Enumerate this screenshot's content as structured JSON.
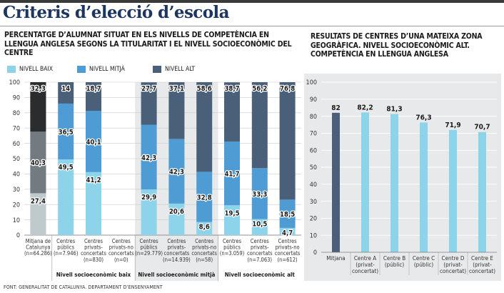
{
  "title": "Criteris d’elecció d’escola",
  "source": "FONT: GENERALITAT DE CATALUNYA. DEPARTAMENT D’ENSENYAMENT",
  "colors": {
    "baix": "#8dd4eb",
    "mitja": "#4e9cd3",
    "alt": "#4a6079",
    "overlay": "#7a7a7a",
    "title": "#1d3561",
    "panel_bg": "#e8e9ea"
  },
  "chart_data": [
    {
      "type": "bar",
      "stacked": true,
      "title": "PERCENTATGE D’ALUMNAT SITUAT EN ELS NIVELLS DE COMPETÈNCIA EN LLENGUA ANGLESA SEGONS LA TITULARITAT I EL NIVELL SOCIOECONÒMIC DEL CENTRE",
      "ylim": [
        0,
        100
      ],
      "yticks": [
        0,
        10,
        20,
        30,
        40,
        50,
        60,
        70,
        80,
        90,
        100
      ],
      "legend": [
        "NIVELL BAIX",
        "NIVELL MITJÀ",
        "NIVELL ALT"
      ],
      "legend_position": "top",
      "categories": [
        [
          "Mitjana de",
          "Catalunya",
          "(n=64.286)"
        ],
        [
          "Centres",
          "públics",
          "(n=7.946)"
        ],
        [
          "Centres",
          "privats-",
          "concertats",
          "(n=830)"
        ],
        [
          "Centres",
          "privats-no",
          "concertats",
          "(n=0)"
        ],
        [
          "Centres",
          "públics",
          "(n=29.779)"
        ],
        [
          "Centres",
          "privats-",
          "concertats",
          "(n=14.939)"
        ],
        [
          "Centres",
          "privats-no",
          "concertats",
          "(n=58)"
        ],
        [
          "Centres",
          "públics",
          "(n=3.059)"
        ],
        [
          "Centres",
          "privats-",
          "concertats",
          "(n=7.063)"
        ],
        [
          "Centres",
          "privats-no",
          "concertats",
          "(n=612)"
        ]
      ],
      "series": [
        {
          "name": "NIVELL BAIX",
          "values": [
            27.4,
            49.5,
            41.2,
            null,
            29.9,
            20.6,
            8.6,
            19.5,
            10.5,
            4.7
          ]
        },
        {
          "name": "NIVELL MITJÀ",
          "values": [
            40.3,
            36.5,
            40.1,
            null,
            42.3,
            42.3,
            32.8,
            41.7,
            33.3,
            18.5
          ]
        },
        {
          "name": "NIVELL ALT",
          "values": [
            32.3,
            14,
            18.7,
            null,
            27.7,
            37.1,
            58.6,
            38.7,
            56.2,
            76.8
          ]
        }
      ],
      "labels": [
        [
          "27,4",
          "40,3",
          "32,3"
        ],
        [
          "49,5",
          "36,5",
          "14"
        ],
        [
          "41,2",
          "40,1",
          "18,7"
        ],
        [
          "",
          "",
          ""
        ],
        [
          "29,9",
          "42,3",
          "27,7"
        ],
        [
          "20,6",
          "42,3",
          "37,1"
        ],
        [
          "8,6",
          "32,8",
          "58,6"
        ],
        [
          "19,5",
          "41,7",
          "38,7"
        ],
        [
          "10,5",
          "33,3",
          "56,2"
        ],
        [
          "4,7",
          "18,5",
          "76,8"
        ]
      ],
      "groups": [
        {
          "label": "Nivell socioeconòmic baix"
        },
        {
          "label": "Nivell socioeconòmic mitjà"
        },
        {
          "label": "Nivell socioeconòmic alt"
        }
      ]
    },
    {
      "type": "bar",
      "title": "RESULTATS DE CENTRES D’UNA MATEIXA ZONA GEOGRÀFICA. NIVELL SOCIOECONÒMIC ALT. COMPETÈNCIA EN LLENGUA ANGLESA",
      "ylim": [
        0,
        100
      ],
      "yticks": [
        0,
        10,
        20,
        30,
        40,
        50,
        60,
        70,
        80,
        90,
        100
      ],
      "categories": [
        [
          "Mitjana"
        ],
        [
          "Centre A",
          "(privat-",
          "concertat)"
        ],
        [
          "Centre B",
          "(públic)"
        ],
        [
          "Centre C",
          "(públic)"
        ],
        [
          "Centre D",
          "(privat-",
          "concertat)"
        ],
        [
          "Centre E",
          "(privat-",
          "concertat)"
        ]
      ],
      "values": [
        82,
        82.2,
        81.3,
        76.3,
        71.9,
        70.7
      ],
      "labels": [
        "82",
        "82,2",
        "81,3",
        "76,3",
        "71,9",
        "70,7"
      ]
    }
  ]
}
